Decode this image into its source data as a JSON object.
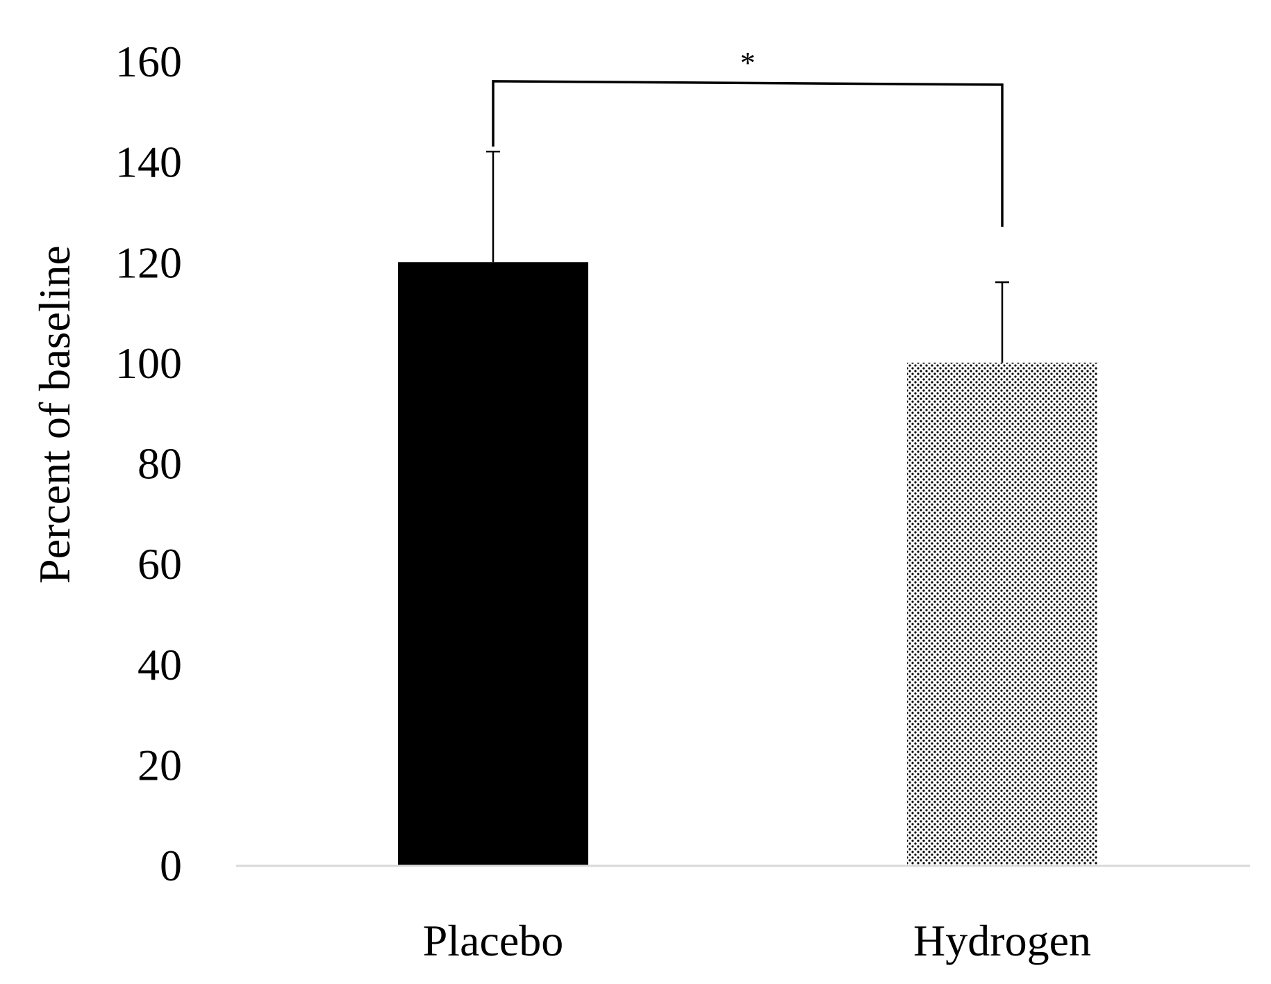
{
  "chart_data": {
    "type": "bar",
    "title": "",
    "xlabel": "",
    "ylabel": "Percent of baseline",
    "ylim": [
      0,
      160
    ],
    "yticks": [
      0,
      20,
      40,
      60,
      80,
      100,
      120,
      140,
      160
    ],
    "categories": [
      "Placebo",
      "Hydrogen"
    ],
    "values": [
      120,
      100
    ],
    "error_upper": [
      142,
      116
    ],
    "fills": [
      "solid",
      "dotted"
    ],
    "colors": {
      "bar": "#000000",
      "axis": "#d9d9d9",
      "dot_pattern": "#000000"
    },
    "grid": false,
    "legend": "none",
    "annotations": [
      {
        "type": "significance-bracket",
        "label": "*",
        "between": [
          "Placebo",
          "Hydrogen"
        ],
        "level": 156,
        "left_end": 143,
        "right_end": 127
      }
    ]
  }
}
